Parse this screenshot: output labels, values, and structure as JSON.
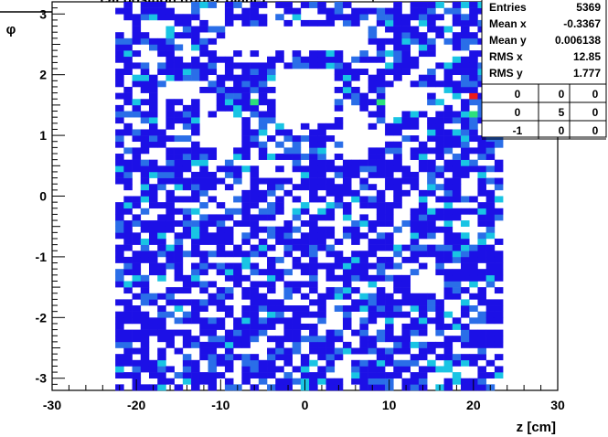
{
  "chart_data": {
    "type": "heatmap",
    "title": "...cal position ((phi-z plane)...",
    "xlabel": "z [cm]",
    "ylabel": "φ",
    "xlim": [
      -30,
      30
    ],
    "ylim": [
      -3.2,
      3.2
    ],
    "x_ticks": [
      "-30",
      "-20",
      "-10",
      "0",
      "10",
      "20",
      "30"
    ],
    "y_ticks": [
      "-3",
      "-2",
      "-1",
      "0",
      "1",
      "2",
      "3"
    ],
    "x_tick_values": [
      -30,
      -20,
      -10,
      0,
      10,
      20,
      30
    ],
    "y_tick_values": [
      -3,
      -2,
      -1,
      0,
      1,
      2,
      3
    ],
    "bins": {
      "x_min": -22.5,
      "x_max": 23.5,
      "nx": 46,
      "y_min": -3.2,
      "y_max": 3.2,
      "ny": 64
    },
    "palette": {
      "1": "#1c10e6",
      "2": "#2a6ee8",
      "3": "#19c4e4",
      "4": "#2ce07c",
      "5": "#ee1a1a"
    },
    "rare_cells": [
      {
        "x": 20.0,
        "y": 1.6,
        "level": 5
      },
      {
        "x": 20.0,
        "y": 1.4,
        "level": 5
      },
      {
        "x": 20.0,
        "y": 1.3,
        "level": 4
      },
      {
        "x": -6.5,
        "y": 1.5,
        "level": 4
      },
      {
        "x": 8.5,
        "y": 1.5,
        "level": 4
      }
    ],
    "empty_regions": [
      {
        "x": [
          -9,
          7
        ],
        "y": [
          2.45,
          2.75
        ]
      },
      {
        "x": [
          -3,
          3
        ],
        "y": [
          1.2,
          2.1
        ]
      },
      {
        "x": [
          5,
          7
        ],
        "y": [
          0.6,
          1.3
        ]
      },
      {
        "x": [
          10,
          14
        ],
        "y": [
          1.4,
          1.8
        ]
      },
      {
        "x": [
          -12,
          -8
        ],
        "y": [
          0.8,
          1.3
        ]
      },
      {
        "x": [
          13,
          16
        ],
        "y": [
          -1.6,
          -1.3
        ]
      },
      {
        "x": [
          -16,
          -13
        ],
        "y": [
          1.6,
          1.9
        ]
      }
    ],
    "stats": [
      {
        "label": "Entries",
        "value": "5369"
      },
      {
        "label": "Mean x",
        "value": "-0.3367"
      },
      {
        "label": "Mean y",
        "value": "0.006138"
      },
      {
        "label": "RMS x",
        "value": "12.85"
      },
      {
        "label": "RMS y",
        "value": "1.777"
      }
    ],
    "overflow_grid": [
      [
        "0",
        "0",
        "0"
      ],
      [
        "0",
        "5",
        "0"
      ],
      [
        "-1",
        "0",
        "0"
      ]
    ]
  }
}
